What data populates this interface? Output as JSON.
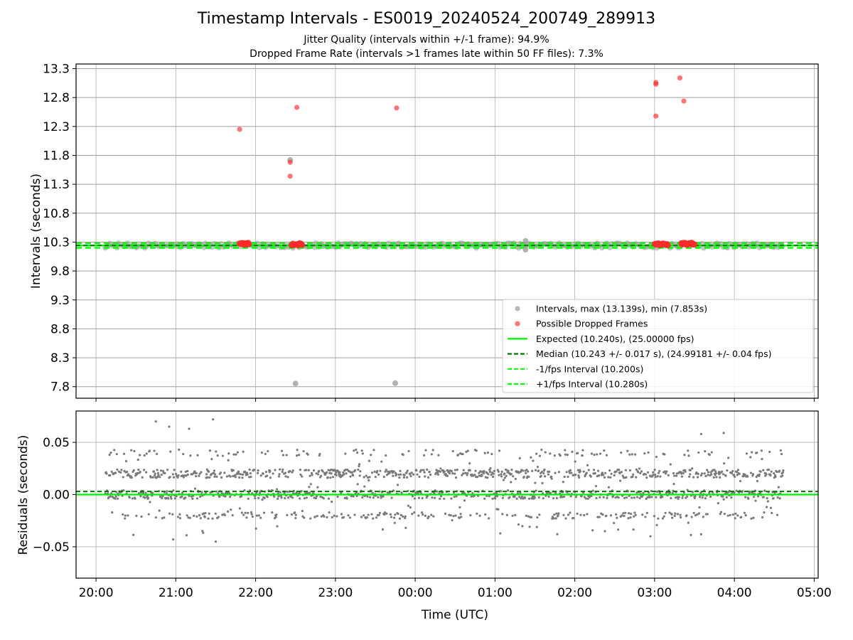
{
  "chart_data": [
    {
      "type": "scatter",
      "title": "Timestamp Intervals - ES0019_20240524_200749_289913",
      "subtitle_1": "Jitter Quality (intervals within +/-1 frame): 94.9%",
      "subtitle_2": "Dropped Frame Rate (intervals >1 frames late within 50 FF files): 7.3%",
      "ylabel": "Intervals (seconds)",
      "xlabel": "",
      "xlim": [
        "19:45",
        "05:03"
      ],
      "ylim": [
        7.6,
        13.38
      ],
      "yticks": [
        "7.8",
        "8.3",
        "8.8",
        "9.3",
        "9.8",
        "10.3",
        "10.8",
        "11.3",
        "11.8",
        "12.3",
        "12.8",
        "13.3"
      ],
      "grid": true,
      "legend": "lower-right",
      "series": [
        {
          "name": "Intervals, max (13.139s), min (7.853s)",
          "color": "#9e9e9e",
          "points": [
            {
              "t": "22:26",
              "y": 11.72
            },
            {
              "t": "22:30",
              "y": 7.853
            },
            {
              "t": "23:45",
              "y": 7.86
            },
            {
              "t": "01:23",
              "y": 10.32
            },
            {
              "t": "01:23",
              "y": 10.17
            }
          ],
          "band": {
            "t_start": "20:07",
            "t_end": "04:37",
            "y_low": 10.2,
            "y_high": 10.28
          }
        },
        {
          "name": "Possible Dropped Frames",
          "color": "#ff2a2a",
          "points": [
            {
              "t": "21:48",
              "y": 12.25
            },
            {
              "t": "22:26",
              "y": 11.68
            },
            {
              "t": "22:26",
              "y": 11.44
            },
            {
              "t": "22:31",
              "y": 12.63
            },
            {
              "t": "23:46",
              "y": 12.62
            },
            {
              "t": "03:01",
              "y": 13.06
            },
            {
              "t": "03:01",
              "y": 13.03
            },
            {
              "t": "03:01",
              "y": 12.48
            },
            {
              "t": "03:19",
              "y": 13.139
            },
            {
              "t": "03:22",
              "y": 12.74
            }
          ],
          "clusters": [
            {
              "t_start": "21:48",
              "t_end": "21:55",
              "y": 10.27
            },
            {
              "t_start": "22:27",
              "t_end": "22:35",
              "y": 10.26
            },
            {
              "t_start": "03:00",
              "t_end": "03:10",
              "y": 10.26
            },
            {
              "t_start": "03:20",
              "t_end": "03:30",
              "y": 10.27
            }
          ]
        },
        {
          "name": "Expected (10.240s), (25.00000 fps)",
          "color": "#00ee00",
          "style": "solid",
          "y": 10.24
        },
        {
          "name": "Median (10.243 +/- 0.017 s), (24.99181 +/- 0.04 fps)",
          "color": "#007700",
          "style": "dashed",
          "y": 10.243
        },
        {
          "name": "-1/fps Interval (10.200s)",
          "color": "#00ff00",
          "style": "dashed",
          "y": 10.2
        },
        {
          "name": "+1/fps Interval (10.280s)",
          "color": "#00ff00",
          "style": "dashed",
          "y": 10.28
        }
      ]
    },
    {
      "type": "scatter",
      "title": "",
      "xlabel": "Time (UTC)",
      "ylabel": "Residuals (seconds)",
      "xlim": [
        "19:45",
        "05:03"
      ],
      "ylim": [
        -0.08,
        0.08
      ],
      "xticks": [
        "20:00",
        "21:00",
        "22:00",
        "23:00",
        "00:00",
        "01:00",
        "02:00",
        "03:00",
        "04:00",
        "05:00"
      ],
      "yticks": [
        "0.05",
        "0.00",
        "−0.05"
      ],
      "grid": true,
      "series": [
        {
          "color": "#7a7a7a",
          "t_start": "20:07",
          "t_end": "04:37",
          "levels": [
            0.02,
            0.0,
            -0.02,
            0.04
          ],
          "outliers": [
            {
              "t": "20:45",
              "y": 0.07
            },
            {
              "t": "20:55",
              "y": 0.065
            },
            {
              "t": "21:10",
              "y": 0.063
            },
            {
              "t": "21:28",
              "y": 0.072
            },
            {
              "t": "21:30",
              "y": -0.045
            },
            {
              "t": "20:58",
              "y": -0.043
            },
            {
              "t": "21:20",
              "y": -0.035
            },
            {
              "t": "03:35",
              "y": 0.058
            },
            {
              "t": "03:52",
              "y": 0.059
            },
            {
              "t": "03:35",
              "y": -0.038
            }
          ]
        },
        {
          "color": "#00ee00",
          "style": "solid",
          "y": 0.0
        },
        {
          "color": "#007700",
          "style": "dashed",
          "y": 0.003
        }
      ]
    }
  ]
}
